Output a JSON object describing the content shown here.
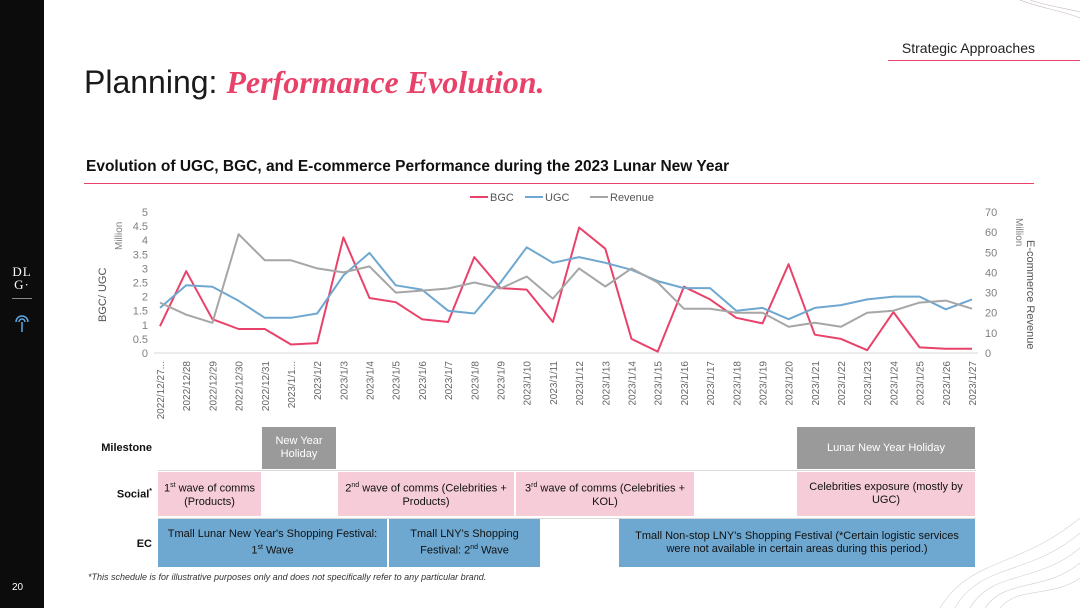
{
  "page": {
    "number": "20",
    "section": "Strategic Approaches",
    "title_plain": "Planning: ",
    "title_accent": "Performance Evolution.",
    "logo_top": "DL",
    "logo_bottom": "G·",
    "footnote": "*This schedule is for illustrative purposes only and does not specifically refer to any particular brand."
  },
  "colors": {
    "accent": "#e8426a",
    "bgc": "#e8426a",
    "ugc": "#6ea8d0",
    "revenue": "#a6a6a6",
    "grey": "#9a9a9a",
    "pink": "#f5ccd8",
    "blue": "#6ea8d0"
  },
  "chart_data": {
    "type": "line",
    "title": "Evolution of UGC, BGC, and E-commerce Performance during the 2023 Lunar New Year",
    "ylabel": "BGC/ UGC",
    "ylabel_unit": "Million",
    "y2label": "E-commerce Revenue",
    "y2label_unit": "Million",
    "ylim": [
      0,
      5
    ],
    "y2lim": [
      0,
      70
    ],
    "yticks": [
      "0",
      "0.5",
      "1",
      "1.5",
      "2",
      "2.5",
      "3",
      "3.5",
      "4",
      "4.5",
      "5"
    ],
    "y2ticks": [
      "0",
      "10",
      "20",
      "30",
      "40",
      "50",
      "60",
      "70"
    ],
    "legend": [
      "BGC",
      "UGC",
      "Revenue"
    ],
    "legend_position": "top",
    "categories": [
      "2022/12/27...",
      "2022/12/28",
      "2022/12/29",
      "2022/12/30",
      "2022/12/31",
      "2023/1/1...",
      "2023/1/2",
      "2023/1/3",
      "2023/1/4",
      "2023/1/5",
      "2023/1/6",
      "2023/1/7",
      "2023/1/8",
      "2023/1/9",
      "2023/1/10",
      "2023/1/11",
      "2023/1/12",
      "2023/1/13",
      "2023/1/14",
      "2023/1/15",
      "2023/1/16",
      "2023/1/17",
      "2023/1/18",
      "2023/1/19",
      "2023/1/20",
      "2023/1/21",
      "2023/1/22",
      "2023/1/23",
      "2023/1/24",
      "2023/1/25",
      "2023/1/26",
      "2023/1/27"
    ],
    "series": [
      {
        "name": "BGC",
        "axis": "left",
        "values": [
          0.95,
          2.9,
          1.2,
          0.85,
          0.85,
          0.3,
          0.35,
          4.1,
          1.95,
          1.8,
          1.2,
          1.1,
          3.4,
          2.3,
          2.25,
          1.1,
          4.45,
          3.7,
          0.5,
          0.05,
          2.35,
          1.9,
          1.25,
          1.05,
          3.15,
          0.65,
          0.5,
          0.1,
          1.45,
          0.2,
          0.15,
          0.15
        ]
      },
      {
        "name": "UGC",
        "axis": "left",
        "values": [
          1.6,
          2.4,
          2.35,
          1.85,
          1.25,
          1.25,
          1.4,
          2.75,
          3.55,
          2.4,
          2.25,
          1.5,
          1.4,
          2.5,
          3.75,
          3.2,
          3.4,
          3.2,
          2.95,
          2.55,
          2.3,
          2.3,
          1.5,
          1.6,
          1.2,
          1.6,
          1.7,
          1.9,
          2.0,
          2.0,
          1.55,
          1.9
        ]
      },
      {
        "name": "Revenue",
        "axis": "right",
        "values": [
          25,
          19,
          15,
          59,
          46,
          46,
          42,
          40,
          43,
          30,
          31,
          32,
          35,
          32,
          38,
          27,
          42,
          33,
          42,
          35,
          22,
          22,
          20,
          20,
          13,
          15,
          13,
          20,
          21,
          25,
          26,
          22
        ]
      }
    ]
  },
  "schedule": {
    "row_labels": {
      "milestone": "Milestone",
      "social": "Social",
      "social_sup": "*",
      "ec": "EC"
    },
    "milestone": [
      {
        "text": "New Year Holiday"
      },
      {
        "text": "Lunar New Year Holiday"
      }
    ],
    "social": [
      {
        "pre": "1",
        "sup": "st",
        "post": " wave of comms (Products)"
      },
      {
        "pre": "2",
        "sup": "nd",
        "post": " wave of comms (Celebrities + Products)"
      },
      {
        "pre": "3",
        "sup": "rd",
        "post": " wave of comms (Celebrities + KOL)"
      },
      {
        "pre": "Celebrities exposure (mostly by UGC)",
        "sup": "",
        "post": ""
      }
    ],
    "ec": [
      {
        "pre": "Tmall Lunar New Year's Shopping Festival: 1",
        "sup": "st",
        "post": " Wave"
      },
      {
        "pre": "Tmall LNY's Shopping Festival: 2",
        "sup": "nd",
        "post": " Wave"
      },
      {
        "pre": "Tmall Non-stop LNY's Shopping Festival (*Certain logistic services were not available in certain areas during this period.)",
        "sup": "",
        "post": ""
      }
    ]
  }
}
